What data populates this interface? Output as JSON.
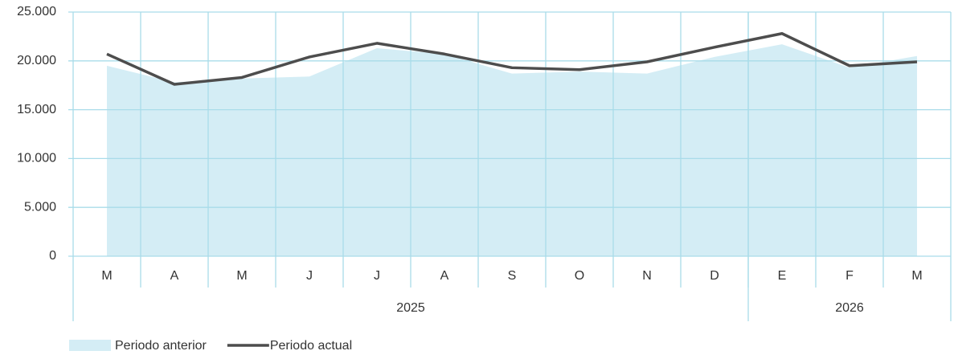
{
  "chart_data": {
    "type": "area-line",
    "categories": [
      "M",
      "A",
      "M",
      "J",
      "J",
      "A",
      "S",
      "O",
      "N",
      "D",
      "E",
      "F",
      "M"
    ],
    "year_groups": [
      {
        "label": "2025",
        "count": 10
      },
      {
        "label": "2026",
        "count": 3
      }
    ],
    "series": [
      {
        "name": "Periodo anterior",
        "color": "#d4edf5",
        "kind": "area",
        "values": [
          19500,
          17800,
          18200,
          18400,
          21300,
          20700,
          18700,
          18900,
          18700,
          20400,
          21700,
          19300,
          20500
        ]
      },
      {
        "name": "Periodo actual",
        "color": "#4d4d4d",
        "kind": "line",
        "values": [
          20700,
          17600,
          18300,
          20400,
          21800,
          20700,
          19300,
          19100,
          19900,
          21400,
          22800,
          19500,
          19900
        ]
      }
    ],
    "ylim": [
      0,
      25000
    ],
    "yticks": [
      0,
      {
        "value": 5000,
        "label": "5.000"
      },
      {
        "value": 10000,
        "label": "10.000"
      },
      {
        "value": 15000,
        "label": "15.000"
      },
      {
        "value": 20000,
        "label": "20.000"
      },
      {
        "value": 25000,
        "label": "25.000"
      }
    ],
    "grid": true,
    "grid_color": "#a9dce9",
    "legend": "bottom-left"
  }
}
